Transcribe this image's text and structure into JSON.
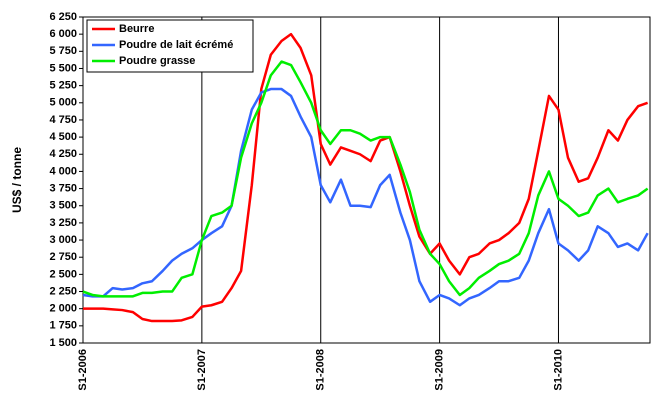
{
  "chart_data": {
    "type": "line",
    "y_label": "US$ / tonne",
    "x": [
      2006,
      2006.08,
      2006.17,
      2006.25,
      2006.33,
      2006.42,
      2006.5,
      2006.58,
      2006.67,
      2006.75,
      2006.83,
      2006.92,
      2007,
      2007.08,
      2007.17,
      2007.25,
      2007.33,
      2007.42,
      2007.5,
      2007.58,
      2007.67,
      2007.75,
      2007.83,
      2007.92,
      2008,
      2008.08,
      2008.17,
      2008.25,
      2008.33,
      2008.42,
      2008.5,
      2008.58,
      2008.67,
      2008.75,
      2008.83,
      2008.92,
      2009,
      2009.08,
      2009.17,
      2009.25,
      2009.33,
      2009.42,
      2009.5,
      2009.58,
      2009.67,
      2009.75,
      2009.83,
      2009.92,
      2010,
      2010.08,
      2010.17,
      2010.25,
      2010.33,
      2010.42,
      2010.5,
      2010.58,
      2010.67,
      2010.75
    ],
    "series": [
      {
        "name": "Beurre",
        "color": "#ff0000",
        "values": [
          2000,
          2000,
          2000,
          1990,
          1980,
          1950,
          1850,
          1820,
          1820,
          1820,
          1830,
          1880,
          2030,
          2050,
          2100,
          2300,
          2550,
          3800,
          5200,
          5700,
          5900,
          6000,
          5800,
          5400,
          4400,
          4100,
          4350,
          4300,
          4250,
          4150,
          4450,
          4500,
          4000,
          3500,
          3050,
          2800,
          2950,
          2700,
          2500,
          2750,
          2800,
          2950,
          3000,
          3100,
          3250,
          3600,
          4300,
          5100,
          4900,
          4200,
          3850,
          3900,
          4200,
          4600,
          4450,
          4750,
          4950,
          5000
        ]
      },
      {
        "name": "Poudre de lait écrémé",
        "color": "#3366ff",
        "values": [
          2200,
          2180,
          2180,
          2300,
          2280,
          2300,
          2370,
          2400,
          2550,
          2700,
          2800,
          2880,
          3000,
          3100,
          3200,
          3500,
          4300,
          4900,
          5150,
          5200,
          5200,
          5100,
          4800,
          4500,
          3800,
          3550,
          3880,
          3500,
          3500,
          3480,
          3800,
          3950,
          3400,
          3000,
          2400,
          2100,
          2200,
          2150,
          2050,
          2150,
          2200,
          2300,
          2400,
          2400,
          2450,
          2700,
          3100,
          3450,
          2950,
          2850,
          2700,
          2850,
          3200,
          3100,
          2900,
          2950,
          2850,
          3100
        ]
      },
      {
        "name": "Poudre grasse",
        "color": "#00ee00",
        "values": [
          2250,
          2200,
          2180,
          2180,
          2180,
          2180,
          2230,
          2230,
          2250,
          2250,
          2450,
          2500,
          3000,
          3350,
          3400,
          3500,
          4200,
          4700,
          5000,
          5400,
          5600,
          5550,
          5300,
          5000,
          4600,
          4400,
          4600,
          4600,
          4550,
          4450,
          4500,
          4500,
          4100,
          3700,
          3150,
          2800,
          2650,
          2400,
          2200,
          2300,
          2450,
          2550,
          2650,
          2700,
          2800,
          3100,
          3650,
          4000,
          3600,
          3500,
          3350,
          3400,
          3650,
          3750,
          3550,
          3600,
          3650,
          3750
        ]
      }
    ],
    "xlim": [
      2006,
      2010.77
    ],
    "xticks": [
      {
        "value": 2006,
        "label": "S1-2006"
      },
      {
        "value": 2007,
        "label": "S1-2007"
      },
      {
        "value": 2008,
        "label": "S1-2008"
      },
      {
        "value": 2009,
        "label": "S1-2009"
      },
      {
        "value": 2010,
        "label": "S1-2010"
      }
    ],
    "ylim": [
      1500,
      6250
    ],
    "yticks": [
      {
        "value": 1500,
        "label": "1 500"
      },
      {
        "value": 1750,
        "label": "1 750"
      },
      {
        "value": 2000,
        "label": "2 000"
      },
      {
        "value": 2250,
        "label": "2 250"
      },
      {
        "value": 2500,
        "label": "2 500"
      },
      {
        "value": 2750,
        "label": "2 750"
      },
      {
        "value": 3000,
        "label": "3 000"
      },
      {
        "value": 3250,
        "label": "3 250"
      },
      {
        "value": 3500,
        "label": "3 500"
      },
      {
        "value": 3750,
        "label": "3 750"
      },
      {
        "value": 4000,
        "label": "4 000"
      },
      {
        "value": 4250,
        "label": "4 250"
      },
      {
        "value": 4500,
        "label": "4 500"
      },
      {
        "value": 4750,
        "label": "4 750"
      },
      {
        "value": 5000,
        "label": "5 000"
      },
      {
        "value": 5250,
        "label": "5 250"
      },
      {
        "value": 5500,
        "label": "5 500"
      },
      {
        "value": 5750,
        "label": "5 750"
      },
      {
        "value": 6000,
        "label": "6 000"
      },
      {
        "value": 6250,
        "label": "6 250"
      }
    ],
    "x_grid": true,
    "legend": "top-left"
  }
}
